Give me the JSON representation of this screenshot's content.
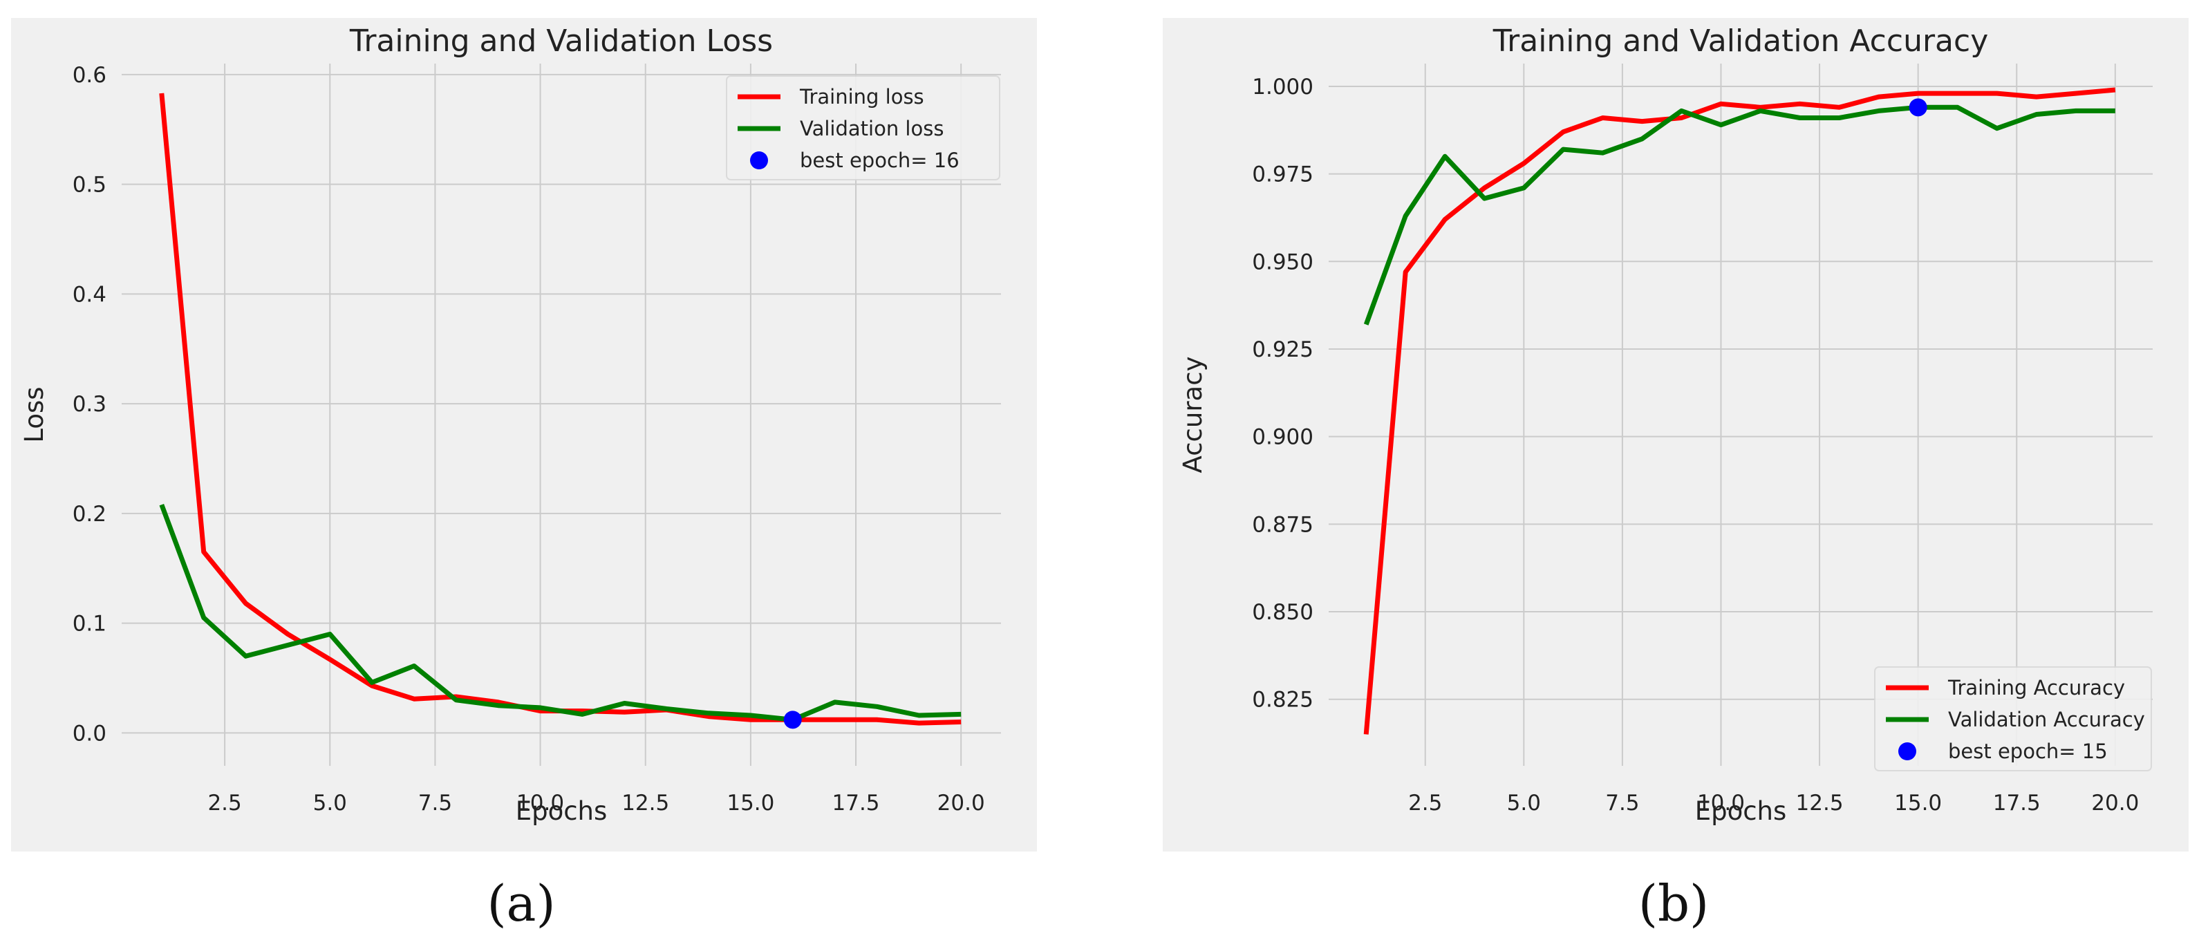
{
  "figure": {
    "caption_a": "(a)",
    "caption_b": "(b)"
  },
  "chart_data": [
    {
      "type": "line",
      "title": "Training and Validation Loss",
      "xlabel": "Epochs",
      "ylabel": "Loss",
      "xlim": [
        0.05,
        20.95
      ],
      "ylim": [
        -0.03,
        0.61
      ],
      "x": [
        1,
        2,
        3,
        4,
        5,
        6,
        7,
        8,
        9,
        10,
        11,
        12,
        13,
        14,
        15,
        16,
        17,
        18,
        19,
        20
      ],
      "xticks": [
        2.5,
        5.0,
        7.5,
        10.0,
        12.5,
        15.0,
        17.5,
        20.0
      ],
      "xtick_labels": [
        "2.5",
        "5.0",
        "7.5",
        "10.0",
        "12.5",
        "15.0",
        "17.5",
        "20.0"
      ],
      "yticks": [
        0.0,
        0.1,
        0.2,
        0.3,
        0.4,
        0.5,
        0.6
      ],
      "ytick_labels": [
        "0.0",
        "0.1",
        "0.2",
        "0.3",
        "0.4",
        "0.5",
        "0.6"
      ],
      "grid": true,
      "legend_position": "top-right",
      "series": [
        {
          "name": "Training loss",
          "color": "#ff0000",
          "values": [
            0.583,
            0.165,
            0.118,
            0.09,
            0.067,
            0.043,
            0.031,
            0.033,
            0.028,
            0.02,
            0.02,
            0.019,
            0.021,
            0.015,
            0.012,
            0.012,
            0.012,
            0.012,
            0.009,
            0.01
          ]
        },
        {
          "name": "Validation loss",
          "color": "#008000",
          "values": [
            0.208,
            0.105,
            0.07,
            0.08,
            0.09,
            0.046,
            0.061,
            0.03,
            0.025,
            0.023,
            0.017,
            0.027,
            0.022,
            0.018,
            0.016,
            0.012,
            0.028,
            0.024,
            0.016,
            0.017
          ]
        }
      ],
      "markers": [
        {
          "name": "best epoch= 16",
          "color": "#0000ff",
          "x": 16,
          "y": 0.012
        }
      ]
    },
    {
      "type": "line",
      "title": "Training and Validation Accuracy",
      "xlabel": "Epochs",
      "ylabel": "Accuracy",
      "xlim": [
        0.05,
        20.95
      ],
      "ylim": [
        0.806,
        1.0065
      ],
      "x": [
        1,
        2,
        3,
        4,
        5,
        6,
        7,
        8,
        9,
        10,
        11,
        12,
        13,
        14,
        15,
        16,
        17,
        18,
        19,
        20
      ],
      "xticks": [
        2.5,
        5.0,
        7.5,
        10.0,
        12.5,
        15.0,
        17.5,
        20.0
      ],
      "xtick_labels": [
        "2.5",
        "5.0",
        "7.5",
        "10.0",
        "12.5",
        "15.0",
        "17.5",
        "20.0"
      ],
      "yticks": [
        0.825,
        0.85,
        0.875,
        0.9,
        0.925,
        0.95,
        0.975,
        1.0
      ],
      "ytick_labels": [
        "0.825",
        "0.850",
        "0.875",
        "0.900",
        "0.925",
        "0.950",
        "0.975",
        "1.000"
      ],
      "grid": true,
      "legend_position": "bottom-right",
      "series": [
        {
          "name": "Training Accuracy",
          "color": "#ff0000",
          "values": [
            0.815,
            0.947,
            0.962,
            0.971,
            0.978,
            0.987,
            0.991,
            0.99,
            0.991,
            0.995,
            0.994,
            0.995,
            0.994,
            0.997,
            0.998,
            0.998,
            0.998,
            0.997,
            0.998,
            0.999
          ]
        },
        {
          "name": "Validation Accuracy",
          "color": "#008000",
          "values": [
            0.932,
            0.963,
            0.98,
            0.968,
            0.971,
            0.982,
            0.981,
            0.985,
            0.993,
            0.989,
            0.993,
            0.991,
            0.991,
            0.993,
            0.994,
            0.994,
            0.988,
            0.992,
            0.993,
            0.993
          ]
        }
      ],
      "markers": [
        {
          "name": "best epoch= 15",
          "color": "#0000ff",
          "x": 15,
          "y": 0.994
        }
      ]
    }
  ]
}
